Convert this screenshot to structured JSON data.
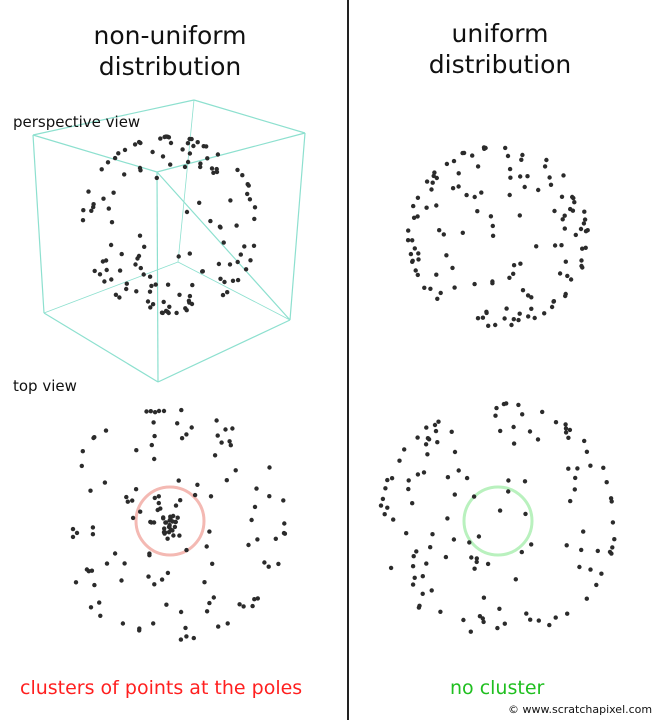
{
  "left": {
    "title_line1": "non-uniform",
    "title_line2": "distribution",
    "perspective_label": "perspective view",
    "top_label": "top view",
    "caption": "clusters of points at the poles",
    "caption_color": "#ff1f1f",
    "pole_circle_color": "#f4b9b3"
  },
  "right": {
    "title_line1": "uniform",
    "title_line2": "distribution",
    "caption": "no cluster",
    "caption_color": "#1fbf1f",
    "pole_circle_color": "#b9f1be"
  },
  "copyright": "© www.scratchapixel.com",
  "colors": {
    "divider": "#222222",
    "point": "#2b2b2b",
    "cube_edges": "#8de0cf"
  }
}
